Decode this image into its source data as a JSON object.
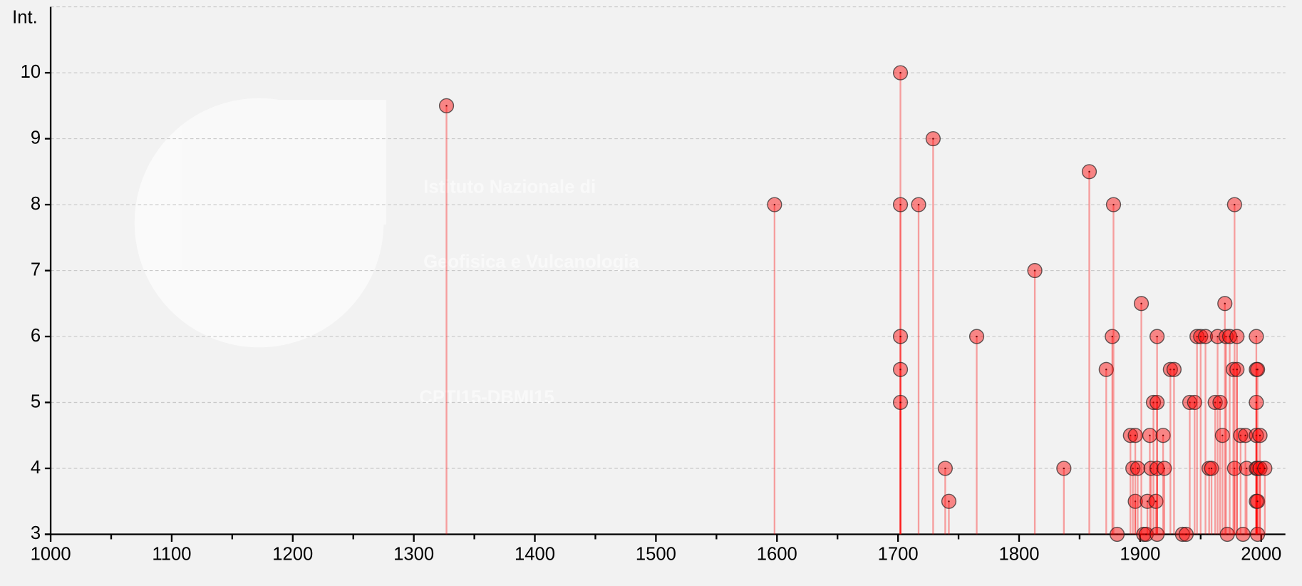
{
  "chart_data": {
    "type": "stem",
    "y_label": "Int.",
    "watermark": [
      "Istituto Nazionale di",
      "Geofisica e Vulcanologia",
      "CPTI15-DBMI15"
    ],
    "x": [
      1327,
      1598,
      1702,
      1702,
      1702,
      1702,
      1702,
      1717,
      1729,
      1739,
      1742,
      1765,
      1813,
      1837,
      1858,
      1872,
      1877,
      1878,
      1881,
      1892,
      1894,
      1896,
      1896,
      1898,
      1901,
      1903,
      1905,
      1906,
      1908,
      1909,
      1911,
      1913,
      1914,
      1914,
      1914,
      1914,
      1919,
      1920,
      1925,
      1928,
      1935,
      1938,
      1941,
      1945,
      1947,
      1950,
      1954,
      1957,
      1959,
      1962,
      1964,
      1966,
      1968,
      1970,
      1971,
      1972,
      1974,
      1977,
      1978,
      1978,
      1980,
      1980,
      1983,
      1985,
      1987,
      1988,
      1996,
      1996,
      1996,
      1996,
      1996,
      1996,
      1997,
      1997,
      1997,
      1997,
      1999,
      1999,
      2003
    ],
    "values": [
      9.5,
      8,
      10,
      8,
      6,
      5.5,
      5,
      8,
      9,
      4,
      3.5,
      6,
      7,
      4,
      8.5,
      5.5,
      6,
      8,
      3,
      4.5,
      4,
      3.5,
      4.5,
      4,
      6.5,
      3,
      3,
      3.5,
      4.5,
      4,
      5,
      3.5,
      5,
      3,
      4,
      6,
      4.5,
      4,
      5.5,
      5.5,
      3,
      3,
      5,
      5,
      6,
      6,
      6,
      4,
      4,
      5,
      6,
      5,
      4.5,
      6.5,
      6,
      3,
      6,
      5.5,
      4,
      8,
      6,
      5.5,
      4.5,
      3,
      4.5,
      4,
      6,
      3.5,
      5.5,
      5,
      4.5,
      4,
      3,
      5.5,
      4,
      3.5,
      4.5,
      4,
      4
    ],
    "color": "#ff0000",
    "xlim": [
      1000,
      2020
    ],
    "ylim": [
      3,
      11
    ],
    "xticks": [
      1000,
      1100,
      1200,
      1300,
      1400,
      1500,
      1600,
      1700,
      1800,
      1900,
      2000
    ],
    "xminorticks": [
      1050,
      1150,
      1250,
      1350,
      1450,
      1550,
      1650,
      1750,
      1850,
      1950
    ],
    "yticks": [
      3,
      4,
      5,
      6,
      7,
      8,
      9,
      10
    ],
    "grid": true
  }
}
